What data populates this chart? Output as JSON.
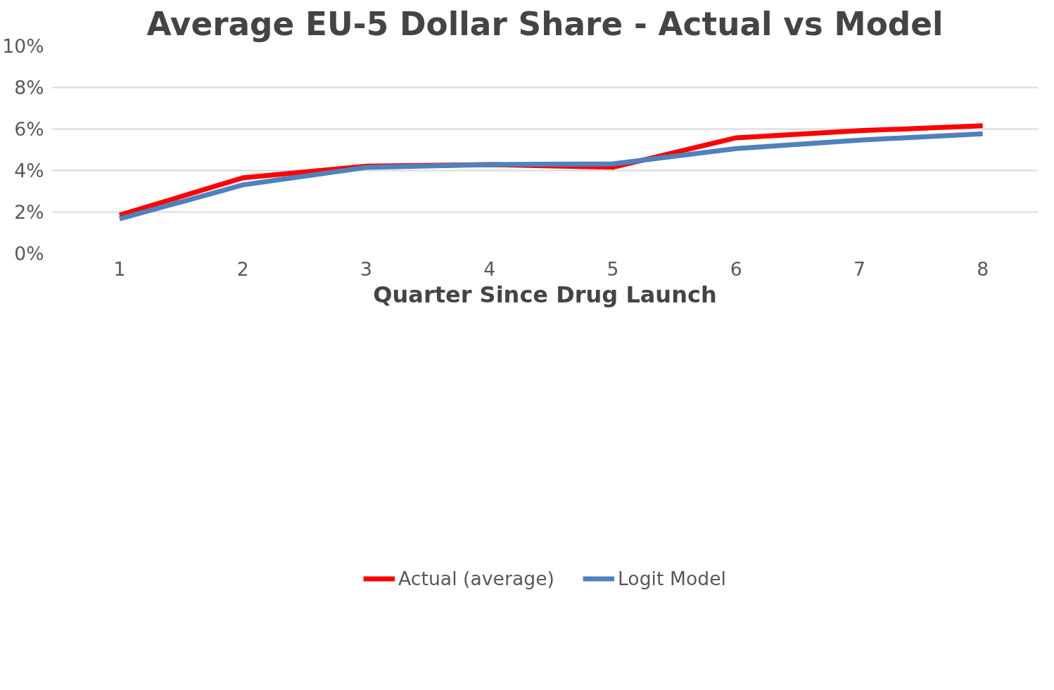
{
  "chart_data": {
    "type": "line",
    "title": "Average EU-5 Dollar Share - Actual vs Model",
    "xlabel": "Quarter Since Drug Launch",
    "categories": [
      "1",
      "2",
      "3",
      "4",
      "5",
      "6",
      "7",
      "8"
    ],
    "series": [
      {
        "name": "Actual (average)",
        "color": "#ff0000",
        "values": [
          1.85,
          3.65,
          4.21,
          4.29,
          4.16,
          5.58,
          5.92,
          6.16
        ]
      },
      {
        "name": "Logit Model",
        "color": "#4f81bd",
        "values": [
          1.67,
          3.31,
          4.15,
          4.29,
          4.32,
          5.06,
          5.47,
          5.77
        ]
      }
    ],
    "ylim": [
      0,
      10
    ],
    "yticks": [
      {
        "value": 0,
        "label": "0%"
      },
      {
        "value": 2,
        "label": "2%"
      },
      {
        "value": 4,
        "label": "4%"
      },
      {
        "value": 6,
        "label": "6%"
      },
      {
        "value": 8,
        "label": "8%"
      },
      {
        "value": 10,
        "label": "10%"
      }
    ],
    "grid": "y",
    "legend": "bottom",
    "marker": "none",
    "line_style": "solid"
  }
}
